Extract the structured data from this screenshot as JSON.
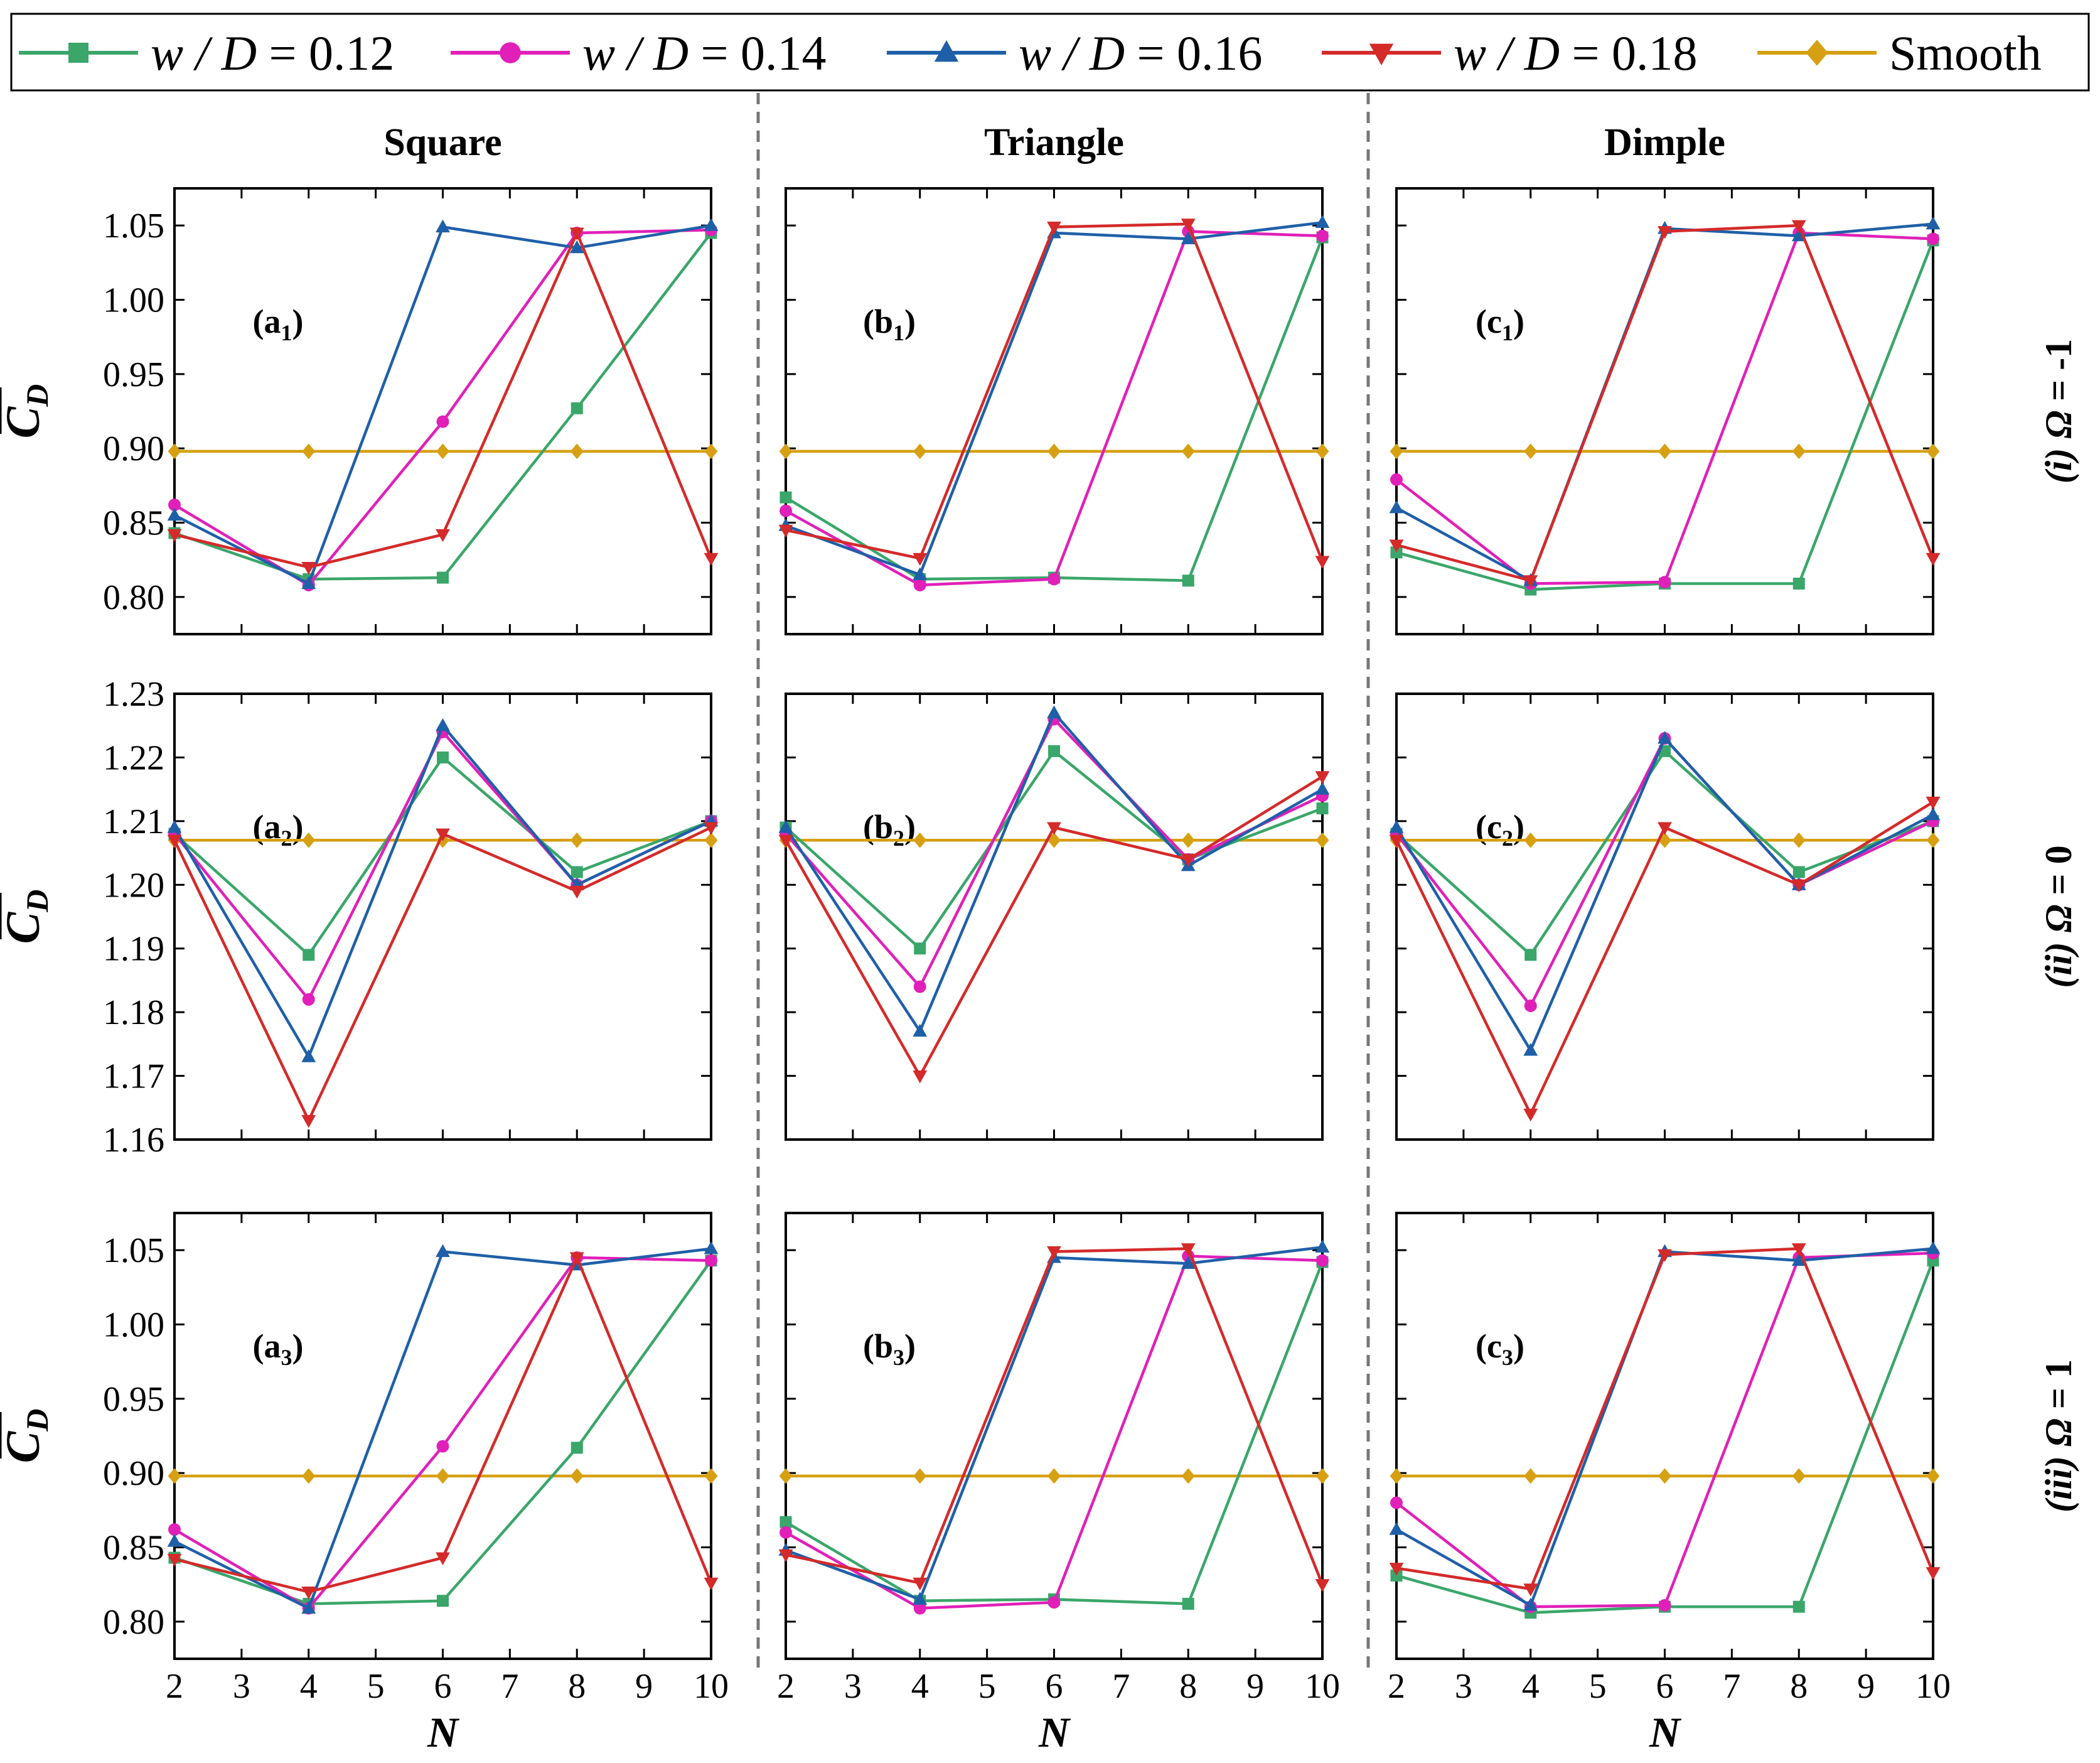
{
  "legend": [
    {
      "label": "w / D = 0.12",
      "color": "#3aa66a",
      "marker": "square"
    },
    {
      "label": "w / D = 0.14",
      "color": "#e020b8",
      "marker": "circle"
    },
    {
      "label": "w / D = 0.16",
      "color": "#1f5fa8",
      "marker": "triangle-up"
    },
    {
      "label": "w / D = 0.18",
      "color": "#d42a2a",
      "marker": "triangle-down"
    },
    {
      "label": "Smooth",
      "color": "#d6a012",
      "marker": "diamond"
    }
  ],
  "columns": [
    "Square",
    "Triangle",
    "Dimple"
  ],
  "rows": [
    "(i) Ω = -1",
    "(ii) Ω = 0",
    "(iii) Ω = 1"
  ],
  "x_label": "N",
  "y_label": "C̅D",
  "chart_data": [
    {
      "type": "line",
      "panel_label": "(a1)",
      "x": [
        2,
        4,
        6,
        8,
        10
      ],
      "ylim": [
        0.775,
        1.075
      ],
      "yticks": [
        0.8,
        0.85,
        0.9,
        0.95,
        1.0,
        1.05
      ],
      "series": [
        {
          "name": "w / D = 0.12",
          "values": [
            0.843,
            0.812,
            0.813,
            0.927,
            1.045
          ]
        },
        {
          "name": "w / D = 0.14",
          "values": [
            0.862,
            0.808,
            0.918,
            1.045,
            1.047
          ]
        },
        {
          "name": "w / D = 0.16",
          "values": [
            0.855,
            0.809,
            1.049,
            1.035,
            1.05
          ]
        },
        {
          "name": "w / D = 0.18",
          "values": [
            0.842,
            0.82,
            0.842,
            1.045,
            0.826
          ]
        },
        {
          "name": "Smooth",
          "values": [
            0.898,
            0.898,
            0.898,
            0.898,
            0.898
          ]
        }
      ]
    },
    {
      "type": "line",
      "panel_label": "(b1)",
      "x": [
        2,
        4,
        6,
        8,
        10
      ],
      "ylim": [
        0.775,
        1.075
      ],
      "yticks": [
        0.8,
        0.85,
        0.9,
        0.95,
        1.0,
        1.05
      ],
      "series": [
        {
          "name": "w / D = 0.12",
          "values": [
            0.867,
            0.812,
            0.813,
            0.811,
            1.042
          ]
        },
        {
          "name": "w / D = 0.14",
          "values": [
            0.858,
            0.808,
            0.812,
            1.046,
            1.043
          ]
        },
        {
          "name": "w / D = 0.16",
          "values": [
            0.848,
            0.815,
            1.045,
            1.041,
            1.052
          ]
        },
        {
          "name": "w / D = 0.18",
          "values": [
            0.845,
            0.826,
            1.049,
            1.051,
            0.824
          ]
        },
        {
          "name": "Smooth",
          "values": [
            0.898,
            0.898,
            0.898,
            0.898,
            0.898
          ]
        }
      ]
    },
    {
      "type": "line",
      "panel_label": "(c1)",
      "x": [
        2,
        4,
        6,
        8,
        10
      ],
      "ylim": [
        0.775,
        1.075
      ],
      "yticks": [
        0.8,
        0.85,
        0.9,
        0.95,
        1.0,
        1.05
      ],
      "series": [
        {
          "name": "w / D = 0.12",
          "values": [
            0.83,
            0.805,
            0.809,
            0.809,
            1.04
          ]
        },
        {
          "name": "w / D = 0.14",
          "values": [
            0.879,
            0.809,
            0.81,
            1.045,
            1.041
          ]
        },
        {
          "name": "w / D = 0.16",
          "values": [
            0.86,
            0.811,
            1.048,
            1.043,
            1.051
          ]
        },
        {
          "name": "w / D = 0.18",
          "values": [
            0.835,
            0.811,
            1.046,
            1.05,
            0.826
          ]
        },
        {
          "name": "Smooth",
          "values": [
            0.898,
            0.898,
            0.898,
            0.898,
            0.898
          ]
        }
      ]
    },
    {
      "type": "line",
      "panel_label": "(a2)",
      "x": [
        2,
        4,
        6,
        8,
        10
      ],
      "ylim": [
        1.16,
        1.23
      ],
      "yticks": [
        1.16,
        1.17,
        1.18,
        1.19,
        1.2,
        1.21,
        1.22,
        1.23
      ],
      "series": [
        {
          "name": "w / D = 0.12",
          "values": [
            1.208,
            1.189,
            1.22,
            1.202,
            1.21
          ]
        },
        {
          "name": "w / D = 0.14",
          "values": [
            1.208,
            1.182,
            1.224,
            1.2,
            1.21
          ]
        },
        {
          "name": "w / D = 0.16",
          "values": [
            1.209,
            1.173,
            1.225,
            1.2,
            1.21
          ]
        },
        {
          "name": "w / D = 0.18",
          "values": [
            1.207,
            1.163,
            1.208,
            1.199,
            1.209
          ]
        },
        {
          "name": "Smooth",
          "values": [
            1.207,
            1.207,
            1.207,
            1.207,
            1.207
          ]
        }
      ]
    },
    {
      "type": "line",
      "panel_label": "(b2)",
      "x": [
        2,
        4,
        6,
        8,
        10
      ],
      "ylim": [
        1.16,
        1.23
      ],
      "yticks": [
        1.16,
        1.17,
        1.18,
        1.19,
        1.2,
        1.21,
        1.22,
        1.23
      ],
      "series": [
        {
          "name": "w / D = 0.12",
          "values": [
            1.209,
            1.19,
            1.221,
            1.204,
            1.212
          ]
        },
        {
          "name": "w / D = 0.14",
          "values": [
            1.208,
            1.184,
            1.226,
            1.204,
            1.214
          ]
        },
        {
          "name": "w / D = 0.16",
          "values": [
            1.209,
            1.177,
            1.227,
            1.203,
            1.215
          ]
        },
        {
          "name": "w / D = 0.18",
          "values": [
            1.207,
            1.17,
            1.209,
            1.204,
            1.217
          ]
        },
        {
          "name": "Smooth",
          "values": [
            1.207,
            1.207,
            1.207,
            1.207,
            1.207
          ]
        }
      ]
    },
    {
      "type": "line",
      "panel_label": "(c2)",
      "x": [
        2,
        4,
        6,
        8,
        10
      ],
      "ylim": [
        1.16,
        1.23
      ],
      "yticks": [
        1.16,
        1.17,
        1.18,
        1.19,
        1.2,
        1.21,
        1.22,
        1.23
      ],
      "series": [
        {
          "name": "w / D = 0.12",
          "values": [
            1.208,
            1.189,
            1.221,
            1.202,
            1.21
          ]
        },
        {
          "name": "w / D = 0.14",
          "values": [
            1.208,
            1.181,
            1.223,
            1.2,
            1.21
          ]
        },
        {
          "name": "w / D = 0.16",
          "values": [
            1.209,
            1.174,
            1.223,
            1.2,
            1.211
          ]
        },
        {
          "name": "w / D = 0.18",
          "values": [
            1.207,
            1.164,
            1.209,
            1.2,
            1.213
          ]
        },
        {
          "name": "Smooth",
          "values": [
            1.207,
            1.207,
            1.207,
            1.207,
            1.207
          ]
        }
      ]
    },
    {
      "type": "line",
      "panel_label": "(a3)",
      "x": [
        2,
        4,
        6,
        8,
        10
      ],
      "ylim": [
        0.775,
        1.075
      ],
      "yticks": [
        0.8,
        0.85,
        0.9,
        0.95,
        1.0,
        1.05
      ],
      "series": [
        {
          "name": "w / D = 0.12",
          "values": [
            0.843,
            0.812,
            0.814,
            0.917,
            1.043
          ]
        },
        {
          "name": "w / D = 0.14",
          "values": [
            0.862,
            0.809,
            0.918,
            1.045,
            1.043
          ]
        },
        {
          "name": "w / D = 0.16",
          "values": [
            0.854,
            0.809,
            1.049,
            1.04,
            1.051
          ]
        },
        {
          "name": "w / D = 0.18",
          "values": [
            0.842,
            0.82,
            0.843,
            1.045,
            0.826
          ]
        },
        {
          "name": "Smooth",
          "values": [
            0.898,
            0.898,
            0.898,
            0.898,
            0.898
          ]
        }
      ]
    },
    {
      "type": "line",
      "panel_label": "(b3)",
      "x": [
        2,
        4,
        6,
        8,
        10
      ],
      "ylim": [
        0.775,
        1.075
      ],
      "yticks": [
        0.8,
        0.85,
        0.9,
        0.95,
        1.0,
        1.05
      ],
      "series": [
        {
          "name": "w / D = 0.12",
          "values": [
            0.867,
            0.814,
            0.815,
            0.812,
            1.042
          ]
        },
        {
          "name": "w / D = 0.14",
          "values": [
            0.86,
            0.809,
            0.813,
            1.046,
            1.043
          ]
        },
        {
          "name": "w / D = 0.16",
          "values": [
            0.848,
            0.815,
            1.045,
            1.041,
            1.052
          ]
        },
        {
          "name": "w / D = 0.18",
          "values": [
            0.845,
            0.826,
            1.049,
            1.051,
            0.825
          ]
        },
        {
          "name": "Smooth",
          "values": [
            0.898,
            0.898,
            0.898,
            0.898,
            0.898
          ]
        }
      ]
    },
    {
      "type": "line",
      "panel_label": "(c3)",
      "x": [
        2,
        4,
        6,
        8,
        10
      ],
      "ylim": [
        0.775,
        1.075
      ],
      "yticks": [
        0.8,
        0.85,
        0.9,
        0.95,
        1.0,
        1.05
      ],
      "series": [
        {
          "name": "w / D = 0.12",
          "values": [
            0.831,
            0.806,
            0.81,
            0.81,
            1.043
          ]
        },
        {
          "name": "w / D = 0.14",
          "values": [
            0.88,
            0.81,
            0.811,
            1.045,
            1.048
          ]
        },
        {
          "name": "w / D = 0.16",
          "values": [
            0.862,
            0.811,
            1.049,
            1.043,
            1.051
          ]
        },
        {
          "name": "w / D = 0.18",
          "values": [
            0.836,
            0.822,
            1.047,
            1.051,
            0.833
          ]
        },
        {
          "name": "Smooth",
          "values": [
            0.898,
            0.898,
            0.898,
            0.898,
            0.898
          ]
        }
      ]
    }
  ]
}
